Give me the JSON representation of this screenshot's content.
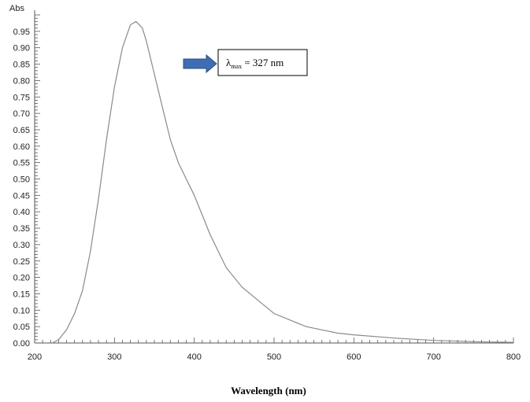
{
  "chart_data": {
    "type": "line",
    "title": "",
    "xlabel": "Wavelength (nm)",
    "ylabel": "Abs",
    "xlim": [
      200,
      800
    ],
    "ylim": [
      0,
      1.0
    ],
    "x_ticks": [
      "200",
      "300",
      "400",
      "500",
      "600",
      "700",
      "800"
    ],
    "y_ticks": [
      "0.00",
      "0.05",
      "0.10",
      "0.15",
      "0.20",
      "0.25",
      "0.30",
      "0.35",
      "0.40",
      "0.45",
      "0.50",
      "0.55",
      "0.60",
      "0.65",
      "0.70",
      "0.75",
      "0.80",
      "0.85",
      "0.90",
      "0.95"
    ],
    "grid": false,
    "series": [
      {
        "x": [
          222,
          230,
          240,
          250,
          260,
          270,
          280,
          290,
          300,
          310,
          320,
          327,
          335,
          340,
          350,
          360,
          370,
          380,
          390,
          400,
          420,
          440,
          460,
          480,
          500,
          520,
          540,
          560,
          580,
          600,
          650,
          700,
          750,
          800
        ],
        "y": [
          0.0,
          0.01,
          0.04,
          0.09,
          0.16,
          0.28,
          0.44,
          0.62,
          0.78,
          0.9,
          0.97,
          0.98,
          0.96,
          0.92,
          0.82,
          0.72,
          0.62,
          0.55,
          0.5,
          0.45,
          0.33,
          0.23,
          0.17,
          0.13,
          0.09,
          0.07,
          0.05,
          0.04,
          0.03,
          0.025,
          0.015,
          0.008,
          0.004,
          0.002
        ],
        "color": "#8a8a8a"
      }
    ],
    "annotation": {
      "lambda": "λ",
      "subscript": "max",
      "value": " = 327 nm",
      "arrow_color": "#3f6db3"
    }
  }
}
